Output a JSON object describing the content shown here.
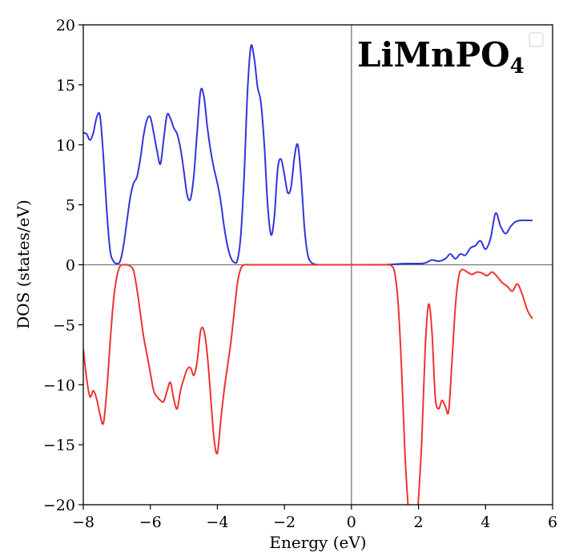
{
  "chart_data": {
    "type": "line",
    "title_main": "LiMnPO",
    "title_sub": "4",
    "xlabel": "Energy (eV)",
    "ylabel": "DOS (states/eV)",
    "xlim": [
      -8,
      6
    ],
    "ylim": [
      -20,
      20
    ],
    "x_ticks": [
      -8,
      -6,
      -4,
      -2,
      0,
      2,
      4,
      6
    ],
    "x_tick_labels": [
      "−8",
      "−6",
      "−4",
      "−2",
      "0",
      "2",
      "4",
      "6"
    ],
    "y_ticks": [
      -20,
      -15,
      -10,
      -5,
      0,
      5,
      10,
      15,
      20
    ],
    "y_tick_labels": [
      "−20",
      "−15",
      "−10",
      "−5",
      "0",
      "5",
      "10",
      "15",
      "20"
    ],
    "grid": false,
    "legend": "top-right (empty)",
    "series": [
      {
        "color": "#3333dd",
        "x": [
          -8.0,
          -7.9,
          -7.8,
          -7.7,
          -7.6,
          -7.5,
          -7.4,
          -7.3,
          -7.2,
          -7.1,
          -7.0,
          -6.9,
          -6.8,
          -6.7,
          -6.6,
          -6.5,
          -6.4,
          -6.3,
          -6.2,
          -6.1,
          -6.0,
          -5.9,
          -5.8,
          -5.7,
          -5.6,
          -5.5,
          -5.4,
          -5.3,
          -5.2,
          -5.1,
          -5.0,
          -4.9,
          -4.8,
          -4.7,
          -4.6,
          -4.5,
          -4.4,
          -4.3,
          -4.2,
          -4.1,
          -4.0,
          -3.9,
          -3.8,
          -3.7,
          -3.6,
          -3.5,
          -3.4,
          -3.3,
          -3.2,
          -3.1,
          -3.0,
          -2.9,
          -2.8,
          -2.7,
          -2.6,
          -2.5,
          -2.4,
          -2.3,
          -2.2,
          -2.1,
          -2.0,
          -1.9,
          -1.8,
          -1.7,
          -1.6,
          -1.5,
          -1.4,
          -1.3,
          -1.2,
          -1.1,
          -1.0,
          -0.9,
          -0.8,
          -0.7,
          -0.6,
          -0.5,
          -0.4,
          -0.3,
          -0.2,
          -0.1,
          0.0,
          0.5,
          1.0,
          1.3,
          1.6,
          2.0,
          2.2,
          2.4,
          2.6,
          2.8,
          2.95,
          3.1,
          3.25,
          3.4,
          3.55,
          3.7,
          3.85,
          4.0,
          4.15,
          4.3,
          4.45,
          4.6,
          4.75,
          4.9,
          5.05,
          5.2,
          5.4
        ],
        "y": [
          11.0,
          10.9,
          10.4,
          11.0,
          12.3,
          12.4,
          9.0,
          4.5,
          1.2,
          0.3,
          0.1,
          0.3,
          1.6,
          3.6,
          5.6,
          6.8,
          7.3,
          8.8,
          10.8,
          12.1,
          12.3,
          11.0,
          9.5,
          8.4,
          10.5,
          12.5,
          12.2,
          11.4,
          10.9,
          9.7,
          7.8,
          5.8,
          5.5,
          7.5,
          11.2,
          14.5,
          14.0,
          11.5,
          9.5,
          8.0,
          6.8,
          5.3,
          3.2,
          1.6,
          0.6,
          0.2,
          0.4,
          2.5,
          7.5,
          14.5,
          18.2,
          17.2,
          14.8,
          13.5,
          10.0,
          5.0,
          2.5,
          4.0,
          8.0,
          8.8,
          7.5,
          6.0,
          6.5,
          9.0,
          10.0,
          7.2,
          3.0,
          0.8,
          0.2,
          0.05,
          0.0,
          0.0,
          0.0,
          0.0,
          0.0,
          0.0,
          0.0,
          0.0,
          0.0,
          0.0,
          0.0,
          0.0,
          0.0,
          0.05,
          0.1,
          0.1,
          0.15,
          0.4,
          0.3,
          0.5,
          0.9,
          0.5,
          0.9,
          0.8,
          1.4,
          1.6,
          2.0,
          1.3,
          2.2,
          4.3,
          3.2,
          2.6,
          3.2,
          3.6,
          3.7,
          3.7,
          3.7
        ]
      },
      {
        "color": "#ee3333",
        "x": [
          -8.0,
          -7.9,
          -7.8,
          -7.7,
          -7.6,
          -7.5,
          -7.4,
          -7.3,
          -7.2,
          -7.1,
          -7.0,
          -6.9,
          -6.8,
          -6.7,
          -6.6,
          -6.5,
          -6.4,
          -6.3,
          -6.2,
          -6.1,
          -6.0,
          -5.9,
          -5.8,
          -5.7,
          -5.6,
          -5.5,
          -5.4,
          -5.3,
          -5.2,
          -5.1,
          -5.0,
          -4.9,
          -4.8,
          -4.7,
          -4.6,
          -4.5,
          -4.4,
          -4.3,
          -4.2,
          -4.1,
          -4.0,
          -3.9,
          -3.8,
          -3.7,
          -3.6,
          -3.5,
          -3.4,
          -3.3,
          -3.2,
          -3.1,
          -3.0,
          -2.9,
          -2.8,
          -2.7,
          -2.6,
          -2.0,
          -1.0,
          0.0,
          1.0,
          1.2,
          1.3,
          1.4,
          1.5,
          1.6,
          1.7,
          1.75,
          1.8,
          1.95,
          2.0,
          2.1,
          2.2,
          2.3,
          2.4,
          2.5,
          2.6,
          2.7,
          2.8,
          2.9,
          3.0,
          3.1,
          3.2,
          3.3,
          3.45,
          3.6,
          3.75,
          3.9,
          4.05,
          4.2,
          4.35,
          4.5,
          4.65,
          4.8,
          4.95,
          5.1,
          5.25,
          5.4
        ],
        "y": [
          -7.0,
          -9.5,
          -11.0,
          -10.5,
          -11.2,
          -12.5,
          -13.2,
          -10.5,
          -6.5,
          -3.0,
          -1.0,
          -0.1,
          0.0,
          0.0,
          -0.1,
          -0.5,
          -2.0,
          -4.0,
          -6.0,
          -7.5,
          -9.0,
          -10.5,
          -11.0,
          -11.3,
          -11.4,
          -10.5,
          -9.8,
          -11.2,
          -12.0,
          -10.5,
          -9.5,
          -8.7,
          -8.6,
          -9.2,
          -8.0,
          -5.5,
          -5.5,
          -7.5,
          -11.0,
          -14.5,
          -15.7,
          -13.0,
          -10.5,
          -8.5,
          -6.5,
          -4.0,
          -1.5,
          -0.3,
          0.0,
          0.0,
          0.0,
          0.0,
          0.0,
          0.0,
          0.0,
          0.0,
          0.0,
          0.0,
          0.0,
          -0.1,
          -0.8,
          -3.5,
          -9.0,
          -16.0,
          -20.5,
          -22.0,
          -22.0,
          -21.0,
          -19.5,
          -14.5,
          -7.0,
          -3.3,
          -5.5,
          -11.0,
          -12.0,
          -11.3,
          -11.8,
          -12.2,
          -8.0,
          -3.5,
          -1.0,
          -0.4,
          -0.6,
          -0.8,
          -0.6,
          -0.7,
          -0.9,
          -0.6,
          -1.0,
          -1.5,
          -1.8,
          -2.2,
          -1.6,
          -2.5,
          -3.8,
          -4.5
        ]
      }
    ],
    "reference_lines": [
      {
        "type": "horizontal",
        "value": 0,
        "color": "#777777"
      },
      {
        "type": "vertical",
        "value": 0,
        "color": "#777777"
      }
    ]
  }
}
